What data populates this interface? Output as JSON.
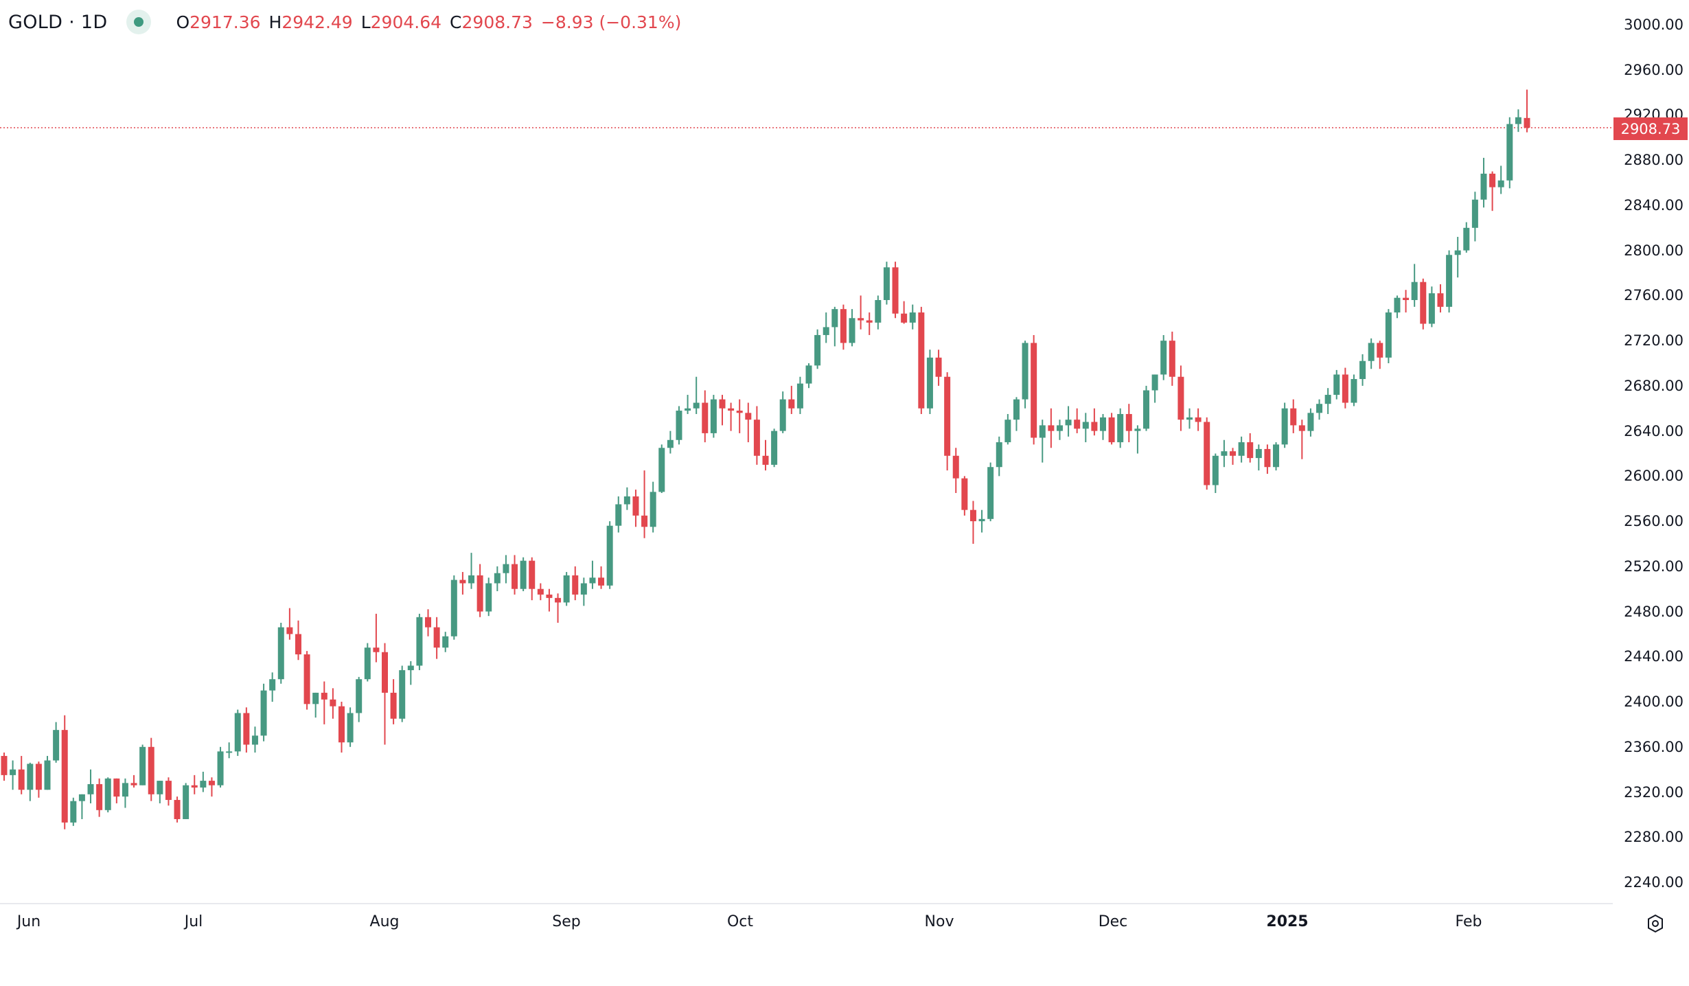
{
  "header": {
    "symbol": "GOLD · 1D",
    "open_label": "O",
    "open": "2917.36",
    "high_label": "H",
    "high": "2942.49",
    "low_label": "L",
    "low": "2904.64",
    "close_label": "C",
    "close": "2908.73",
    "change": "−8.93 (−0.31%)"
  },
  "colors": {
    "up": "#479982",
    "down": "#e2474e",
    "last_price": "#e2474e"
  },
  "settings_icon": "gear-icon",
  "chart_data": {
    "type": "candlestick",
    "symbol": "GOLD",
    "interval": "1D",
    "last_price": "2908.73",
    "ylim": [
      2220,
      3010
    ],
    "y_ticks": [
      "3000.00",
      "2960.00",
      "2920.00",
      "2880.00",
      "2840.00",
      "2800.00",
      "2760.00",
      "2720.00",
      "2680.00",
      "2640.00",
      "2600.00",
      "2560.00",
      "2520.00",
      "2480.00",
      "2440.00",
      "2400.00",
      "2360.00",
      "2320.00",
      "2280.00",
      "2240.00"
    ],
    "x_ticks": [
      "Jun",
      "Jul",
      "Aug",
      "Sep",
      "Oct",
      "Nov",
      "Dec",
      "2025",
      "Feb"
    ],
    "grid": false,
    "candles": [
      [
        2352,
        2355,
        2330,
        2335
      ],
      [
        2335,
        2348,
        2322,
        2340
      ],
      [
        2340,
        2352,
        2318,
        2322
      ],
      [
        2322,
        2346,
        2312,
        2345
      ],
      [
        2345,
        2347,
        2315,
        2322
      ],
      [
        2322,
        2352,
        2322,
        2348
      ],
      [
        2348,
        2382,
        2346,
        2375
      ],
      [
        2375,
        2388,
        2287,
        2293
      ],
      [
        2293,
        2315,
        2290,
        2312
      ],
      [
        2312,
        2318,
        2296,
        2318
      ],
      [
        2318,
        2340,
        2310,
        2327
      ],
      [
        2327,
        2332,
        2298,
        2304
      ],
      [
        2304,
        2333,
        2302,
        2332
      ],
      [
        2332,
        2332,
        2310,
        2316
      ],
      [
        2316,
        2332,
        2306,
        2328
      ],
      [
        2328,
        2335,
        2324,
        2326
      ],
      [
        2326,
        2362,
        2326,
        2360
      ],
      [
        2360,
        2368,
        2312,
        2318
      ],
      [
        2318,
        2330,
        2310,
        2330
      ],
      [
        2330,
        2333,
        2308,
        2313
      ],
      [
        2313,
        2316,
        2293,
        2296
      ],
      [
        2296,
        2328,
        2296,
        2326
      ],
      [
        2326,
        2335,
        2318,
        2324
      ],
      [
        2324,
        2338,
        2320,
        2330
      ],
      [
        2330,
        2333,
        2316,
        2326
      ],
      [
        2326,
        2360,
        2324,
        2356
      ],
      [
        2356,
        2364,
        2350,
        2356
      ],
      [
        2356,
        2393,
        2352,
        2390
      ],
      [
        2390,
        2395,
        2355,
        2362
      ],
      [
        2362,
        2378,
        2355,
        2370
      ],
      [
        2370,
        2416,
        2365,
        2410
      ],
      [
        2410,
        2426,
        2400,
        2420
      ],
      [
        2420,
        2470,
        2416,
        2466
      ],
      [
        2466,
        2483,
        2455,
        2460
      ],
      [
        2460,
        2472,
        2437,
        2442
      ],
      [
        2442,
        2445,
        2393,
        2398
      ],
      [
        2398,
        2408,
        2386,
        2408
      ],
      [
        2408,
        2418,
        2380,
        2402
      ],
      [
        2402,
        2412,
        2385,
        2396
      ],
      [
        2396,
        2400,
        2355,
        2364
      ],
      [
        2364,
        2395,
        2360,
        2390
      ],
      [
        2390,
        2422,
        2382,
        2420
      ],
      [
        2420,
        2452,
        2418,
        2448
      ],
      [
        2448,
        2478,
        2435,
        2444
      ],
      [
        2444,
        2452,
        2362,
        2408
      ],
      [
        2408,
        2420,
        2380,
        2385
      ],
      [
        2385,
        2432,
        2382,
        2428
      ],
      [
        2428,
        2436,
        2415,
        2432
      ],
      [
        2432,
        2478,
        2428,
        2475
      ],
      [
        2475,
        2482,
        2458,
        2466
      ],
      [
        2466,
        2475,
        2438,
        2448
      ],
      [
        2448,
        2462,
        2444,
        2458
      ],
      [
        2458,
        2512,
        2455,
        2508
      ],
      [
        2508,
        2515,
        2495,
        2505
      ],
      [
        2505,
        2532,
        2500,
        2512
      ],
      [
        2512,
        2522,
        2475,
        2480
      ],
      [
        2480,
        2510,
        2476,
        2505
      ],
      [
        2505,
        2520,
        2498,
        2514
      ],
      [
        2514,
        2530,
        2505,
        2522
      ],
      [
        2522,
        2530,
        2495,
        2500
      ],
      [
        2500,
        2528,
        2498,
        2525
      ],
      [
        2525,
        2528,
        2490,
        2500
      ],
      [
        2500,
        2505,
        2490,
        2495
      ],
      [
        2495,
        2500,
        2480,
        2492
      ],
      [
        2492,
        2496,
        2470,
        2488
      ],
      [
        2488,
        2515,
        2485,
        2512
      ],
      [
        2512,
        2520,
        2490,
        2495
      ],
      [
        2495,
        2510,
        2485,
        2505
      ],
      [
        2505,
        2525,
        2500,
        2510
      ],
      [
        2510,
        2520,
        2500,
        2503
      ],
      [
        2503,
        2560,
        2500,
        2556
      ],
      [
        2556,
        2582,
        2550,
        2575
      ],
      [
        2575,
        2590,
        2570,
        2582
      ],
      [
        2582,
        2588,
        2555,
        2565
      ],
      [
        2565,
        2605,
        2545,
        2555
      ],
      [
        2555,
        2595,
        2550,
        2586
      ],
      [
        2586,
        2628,
        2585,
        2625
      ],
      [
        2625,
        2640,
        2620,
        2632
      ],
      [
        2632,
        2662,
        2628,
        2658
      ],
      [
        2658,
        2672,
        2655,
        2660
      ],
      [
        2660,
        2688,
        2655,
        2665
      ],
      [
        2665,
        2676,
        2630,
        2638
      ],
      [
        2638,
        2672,
        2634,
        2668
      ],
      [
        2668,
        2672,
        2645,
        2660
      ],
      [
        2660,
        2665,
        2640,
        2658
      ],
      [
        2658,
        2668,
        2638,
        2656
      ],
      [
        2656,
        2665,
        2630,
        2650
      ],
      [
        2650,
        2662,
        2610,
        2618
      ],
      [
        2618,
        2632,
        2605,
        2610
      ],
      [
        2610,
        2642,
        2608,
        2640
      ],
      [
        2640,
        2675,
        2638,
        2668
      ],
      [
        2668,
        2680,
        2655,
        2660
      ],
      [
        2660,
        2688,
        2655,
        2682
      ],
      [
        2682,
        2700,
        2678,
        2698
      ],
      [
        2698,
        2730,
        2695,
        2725
      ],
      [
        2725,
        2745,
        2718,
        2732
      ],
      [
        2732,
        2750,
        2715,
        2748
      ],
      [
        2748,
        2752,
        2712,
        2718
      ],
      [
        2718,
        2748,
        2715,
        2740
      ],
      [
        2740,
        2760,
        2730,
        2738
      ],
      [
        2738,
        2745,
        2725,
        2736
      ],
      [
        2736,
        2760,
        2730,
        2756
      ],
      [
        2756,
        2790,
        2752,
        2785
      ],
      [
        2785,
        2790,
        2740,
        2744
      ],
      [
        2744,
        2755,
        2735,
        2736
      ],
      [
        2736,
        2752,
        2730,
        2745
      ],
      [
        2745,
        2750,
        2655,
        2660
      ],
      [
        2660,
        2712,
        2655,
        2705
      ],
      [
        2705,
        2712,
        2680,
        2688
      ],
      [
        2688,
        2692,
        2605,
        2618
      ],
      [
        2618,
        2625,
        2585,
        2598
      ],
      [
        2598,
        2600,
        2565,
        2570
      ],
      [
        2570,
        2578,
        2540,
        2560
      ],
      [
        2560,
        2570,
        2550,
        2562
      ],
      [
        2562,
        2612,
        2560,
        2608
      ],
      [
        2608,
        2635,
        2600,
        2630
      ],
      [
        2630,
        2655,
        2628,
        2650
      ],
      [
        2650,
        2670,
        2640,
        2668
      ],
      [
        2668,
        2720,
        2660,
        2718
      ],
      [
        2718,
        2725,
        2628,
        2634
      ],
      [
        2634,
        2650,
        2612,
        2645
      ],
      [
        2645,
        2660,
        2625,
        2640
      ],
      [
        2640,
        2650,
        2632,
        2645
      ],
      [
        2645,
        2662,
        2635,
        2650
      ],
      [
        2650,
        2660,
        2638,
        2642
      ],
      [
        2642,
        2656,
        2630,
        2648
      ],
      [
        2648,
        2660,
        2636,
        2640
      ],
      [
        2640,
        2655,
        2632,
        2652
      ],
      [
        2652,
        2656,
        2628,
        2630
      ],
      [
        2630,
        2660,
        2625,
        2655
      ],
      [
        2655,
        2664,
        2630,
        2640
      ],
      [
        2640,
        2645,
        2620,
        2642
      ],
      [
        2642,
        2680,
        2640,
        2676
      ],
      [
        2676,
        2690,
        2665,
        2690
      ],
      [
        2690,
        2725,
        2685,
        2720
      ],
      [
        2720,
        2728,
        2680,
        2688
      ],
      [
        2688,
        2698,
        2640,
        2650
      ],
      [
        2650,
        2660,
        2642,
        2652
      ],
      [
        2652,
        2660,
        2640,
        2648
      ],
      [
        2648,
        2652,
        2588,
        2592
      ],
      [
        2592,
        2620,
        2585,
        2618
      ],
      [
        2618,
        2632,
        2608,
        2622
      ],
      [
        2622,
        2625,
        2610,
        2618
      ],
      [
        2618,
        2635,
        2612,
        2630
      ],
      [
        2630,
        2638,
        2612,
        2616
      ],
      [
        2616,
        2628,
        2605,
        2624
      ],
      [
        2624,
        2628,
        2602,
        2608
      ],
      [
        2608,
        2630,
        2605,
        2628
      ],
      [
        2628,
        2665,
        2625,
        2660
      ],
      [
        2660,
        2668,
        2638,
        2645
      ],
      [
        2645,
        2650,
        2615,
        2640
      ],
      [
        2640,
        2660,
        2635,
        2656
      ],
      [
        2656,
        2668,
        2650,
        2664
      ],
      [
        2664,
        2678,
        2655,
        2672
      ],
      [
        2672,
        2694,
        2668,
        2690
      ],
      [
        2690,
        2696,
        2660,
        2665
      ],
      [
        2665,
        2690,
        2662,
        2686
      ],
      [
        2686,
        2708,
        2680,
        2702
      ],
      [
        2702,
        2722,
        2695,
        2718
      ],
      [
        2718,
        2720,
        2695,
        2705
      ],
      [
        2705,
        2748,
        2700,
        2745
      ],
      [
        2745,
        2760,
        2740,
        2758
      ],
      [
        2758,
        2765,
        2745,
        2756
      ],
      [
        2756,
        2788,
        2750,
        2772
      ],
      [
        2772,
        2775,
        2730,
        2735
      ],
      [
        2735,
        2768,
        2732,
        2762
      ],
      [
        2762,
        2770,
        2745,
        2750
      ],
      [
        2750,
        2800,
        2745,
        2796
      ],
      [
        2796,
        2812,
        2776,
        2800
      ],
      [
        2800,
        2825,
        2798,
        2820
      ],
      [
        2820,
        2852,
        2808,
        2845
      ],
      [
        2845,
        2882,
        2838,
        2868
      ],
      [
        2868,
        2870,
        2835,
        2856
      ],
      [
        2856,
        2875,
        2850,
        2862
      ],
      [
        2862,
        2918,
        2855,
        2912
      ],
      [
        2912,
        2925,
        2905,
        2918
      ],
      [
        2917.36,
        2942.49,
        2904.64,
        2908.73
      ]
    ]
  }
}
